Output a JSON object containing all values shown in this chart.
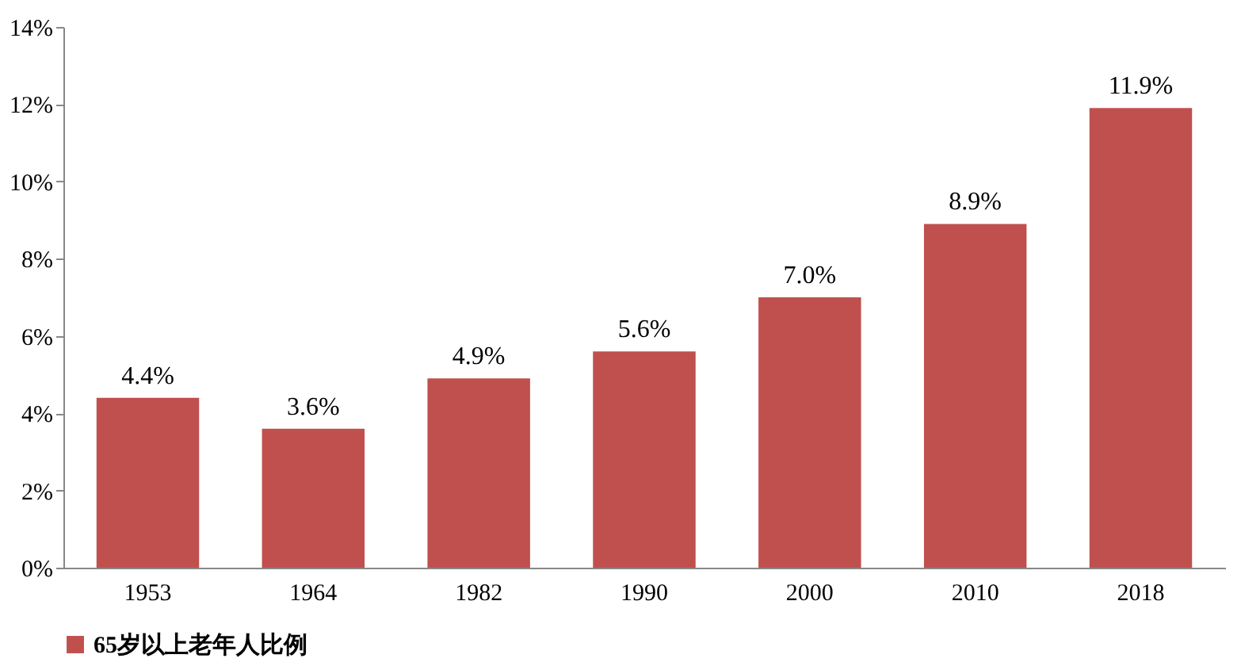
{
  "chart_data": {
    "type": "bar",
    "categories": [
      "1953",
      "1964",
      "1982",
      "1990",
      "2000",
      "2010",
      "2018"
    ],
    "series": [
      {
        "name": "65岁以上老年人比例",
        "color": "#c0504d",
        "values": [
          4.4,
          3.6,
          4.9,
          5.6,
          7.0,
          8.9,
          11.9
        ],
        "value_labels": [
          "4.4%",
          "3.6%",
          "4.9%",
          "5.6%",
          "7.0%",
          "8.9%",
          "11.9%"
        ]
      }
    ],
    "ylim": [
      0,
      14
    ],
    "yticks": [
      {
        "value": 0,
        "label": "0%"
      },
      {
        "value": 2,
        "label": "2%"
      },
      {
        "value": 4,
        "label": "4%"
      },
      {
        "value": 6,
        "label": "6%"
      },
      {
        "value": 8,
        "label": "8%"
      },
      {
        "value": 10,
        "label": "10%"
      },
      {
        "value": 12,
        "label": "12%"
      },
      {
        "value": 14,
        "label": "14%"
      }
    ],
    "grid": false,
    "legend": "bottom"
  }
}
